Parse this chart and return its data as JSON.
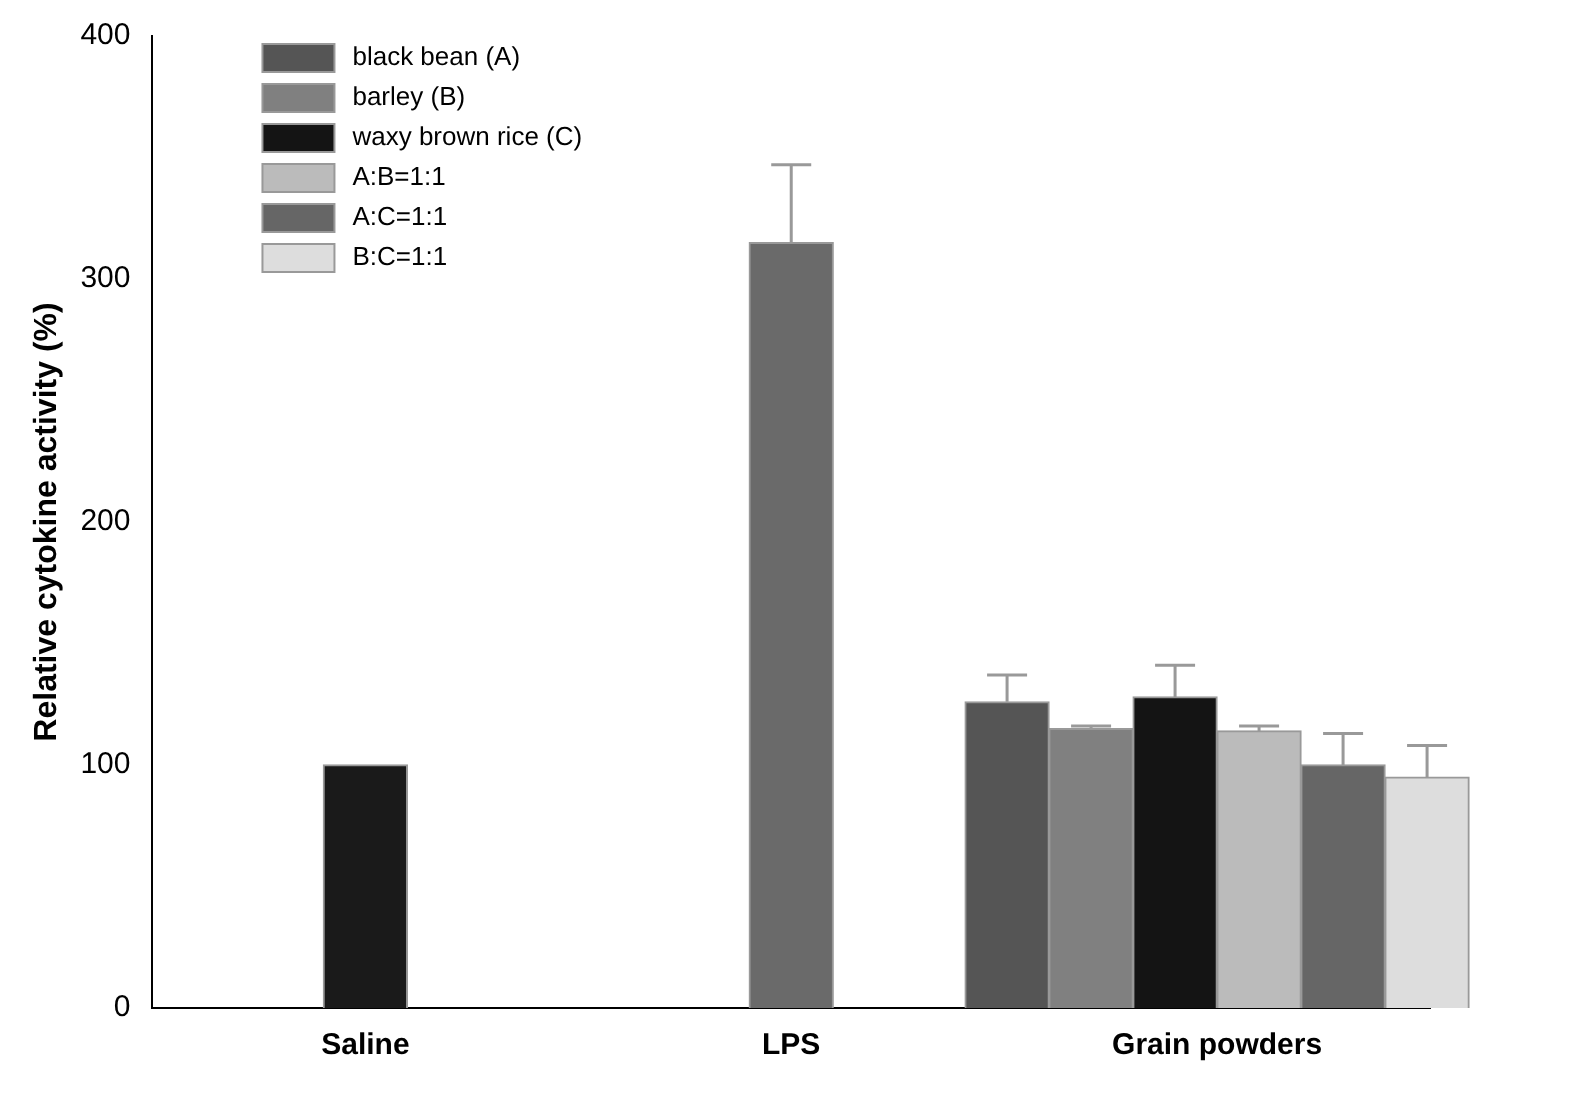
{
  "chart_data": {
    "type": "bar",
    "ylabel": "Relative cytokine activity (%)",
    "categories": [
      "Saline",
      "LPS",
      "Grain powders"
    ],
    "ylim": [
      0,
      400
    ],
    "yticks": [
      0,
      100,
      200,
      300,
      400
    ],
    "grid": false,
    "legend": "top left",
    "series": [
      {
        "color": "#1a1a1a",
        "values": [
          100,
          null,
          null
        ],
        "errors": [
          null,
          null,
          null
        ]
      },
      {
        "color": "#6a6a6a",
        "values": [
          null,
          315,
          null
        ],
        "errors": [
          null,
          32,
          null
        ]
      },
      {
        "name": "black bean (A)",
        "color": "#555555",
        "values": [
          null,
          null,
          126
        ],
        "errors": [
          null,
          null,
          11
        ]
      },
      {
        "name": "barley (B)",
        "color": "#808080",
        "values": [
          null,
          null,
          115
        ],
        "errors": [
          null,
          null,
          1
        ]
      },
      {
        "name": "waxy brown rice (C)",
        "color": "#141414",
        "values": [
          null,
          null,
          128
        ],
        "errors": [
          null,
          null,
          13
        ]
      },
      {
        "name": "A:B=1:1",
        "color": "#bbbbbb",
        "values": [
          null,
          null,
          114
        ],
        "errors": [
          null,
          null,
          2
        ]
      },
      {
        "name": "A:C=1:1",
        "color": "#666666",
        "values": [
          null,
          null,
          100
        ],
        "errors": [
          null,
          null,
          13
        ]
      },
      {
        "name": "B:C=1:1",
        "color": "#dddddd",
        "values": [
          null,
          null,
          95
        ],
        "errors": [
          null,
          null,
          13
        ]
      }
    ]
  }
}
